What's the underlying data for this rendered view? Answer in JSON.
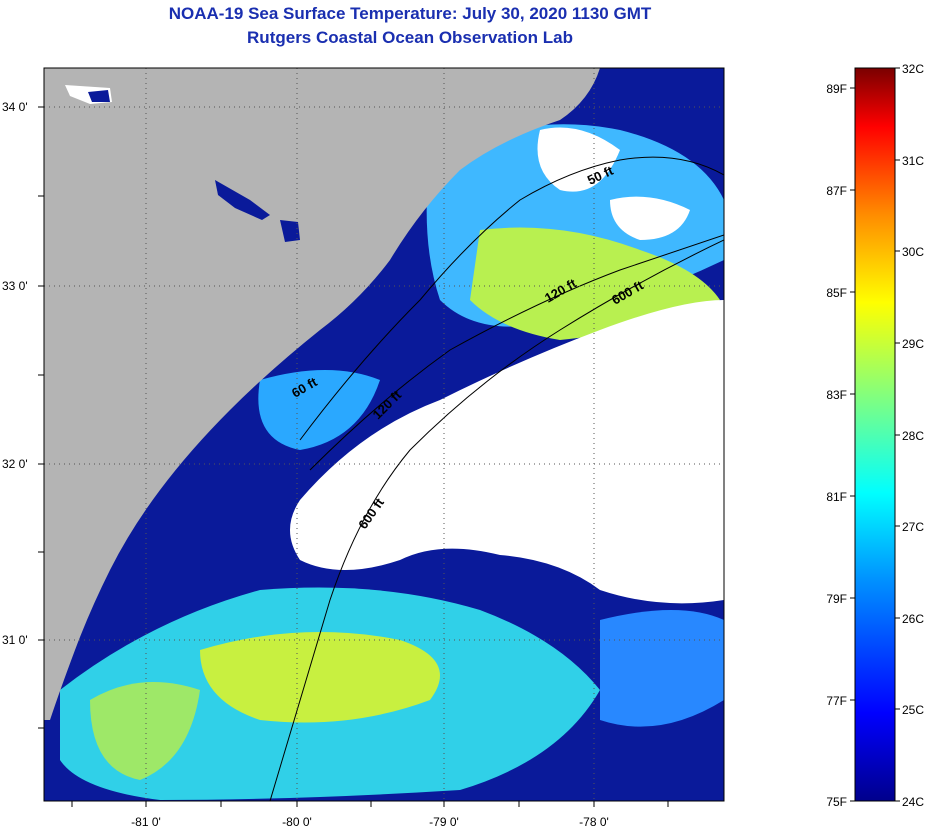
{
  "header": {
    "title": "NOAA-19 Sea Surface Temperature:  July 30, 2020 1130 GMT",
    "subtitle": "Rutgers Coastal Ocean Observation Lab"
  },
  "map": {
    "lat_labels": [
      "34 0'",
      "33 0'",
      "32 0'",
      "31 0'"
    ],
    "lon_labels": [
      "-81 0'",
      "-80 0'",
      "-79 0'",
      "-78 0'"
    ],
    "contours": [
      "600 ft",
      "120 ft",
      "50 ft",
      "120 ft",
      "60 ft",
      "600 ft"
    ],
    "colors": {
      "land": "#b4b4b4",
      "cloud": "#ffffff",
      "cold_water": "#0a1a9a",
      "mid_water": "#1ec8ff",
      "warm_water": "#c8f040"
    }
  },
  "colorbar": {
    "celsius_labels": [
      "32C",
      "31C",
      "30C",
      "29C",
      "28C",
      "27C",
      "26C",
      "25C",
      "24C"
    ],
    "fahrenheit_labels": [
      "89F",
      "87F",
      "85F",
      "83F",
      "81F",
      "79F",
      "77F",
      "75F"
    ],
    "colors": [
      "#7a0000",
      "#ff0000",
      "#ff8c00",
      "#ffff00",
      "#80ff80",
      "#00ffff",
      "#0090ff",
      "#0000ff",
      "#00008c"
    ]
  }
}
